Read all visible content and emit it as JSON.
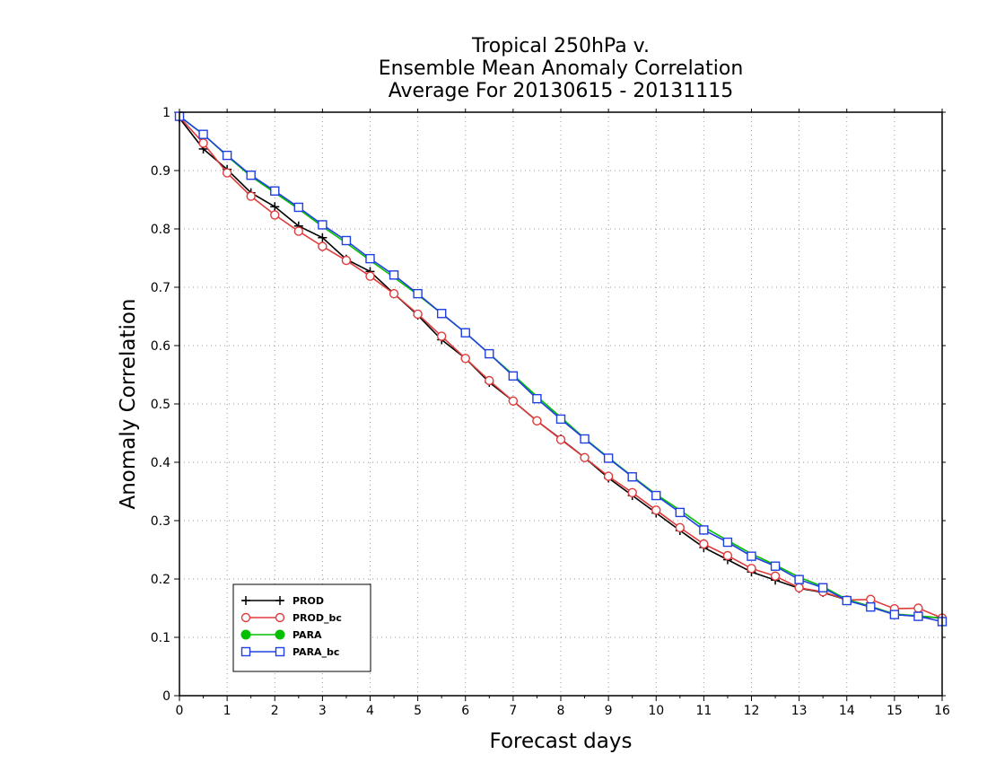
{
  "chart_data": {
    "type": "line",
    "title": [
      "Tropical 250hPa v.",
      "Ensemble Mean Anomaly Correlation",
      "Average For 20130615 - 20131115"
    ],
    "xlabel": "Forecast days",
    "ylabel": "Anomaly Correlation",
    "xlim": [
      0,
      16
    ],
    "ylim": [
      0,
      1
    ],
    "xticks": [
      0,
      1,
      2,
      3,
      4,
      5,
      6,
      7,
      8,
      9,
      10,
      11,
      12,
      13,
      14,
      15,
      16
    ],
    "yticks": [
      0,
      0.1,
      0.2,
      0.3,
      0.4,
      0.5,
      0.6,
      0.7,
      0.8,
      0.9,
      1
    ],
    "ytick_labels": [
      "0",
      "0.1",
      "0.2",
      "0.3",
      "0.4",
      "0.5",
      "0.6",
      "0.7",
      "0.8",
      "0.9",
      "1"
    ],
    "grid": true,
    "legend_position": "bottom-left",
    "x": [
      0,
      0.5,
      1,
      1.5,
      2,
      2.5,
      3,
      3.5,
      4,
      4.5,
      5,
      5.5,
      6,
      6.5,
      7,
      7.5,
      8,
      8.5,
      9,
      9.5,
      10,
      10.5,
      11,
      11.5,
      12,
      12.5,
      13,
      13.5,
      14,
      14.5,
      15,
      15.5,
      16
    ],
    "series": [
      {
        "name": "PROD",
        "color": "#000000",
        "marker": "plus",
        "values": [
          0.99,
          0.937,
          0.902,
          0.862,
          0.838,
          0.805,
          0.785,
          0.748,
          0.727,
          0.689,
          0.652,
          0.61,
          0.578,
          0.537,
          0.505,
          0.471,
          0.44,
          0.408,
          0.373,
          0.343,
          0.313,
          0.283,
          0.254,
          0.233,
          0.212,
          0.198,
          0.184,
          0.177,
          0.164,
          0.152,
          0.139,
          0.136,
          0.133
        ]
      },
      {
        "name": "PROD_bc",
        "color": "#e03c3c",
        "marker": "circle",
        "values": [
          0.992,
          0.947,
          0.896,
          0.856,
          0.824,
          0.796,
          0.77,
          0.746,
          0.719,
          0.689,
          0.654,
          0.616,
          0.578,
          0.54,
          0.505,
          0.471,
          0.439,
          0.408,
          0.376,
          0.348,
          0.318,
          0.288,
          0.26,
          0.24,
          0.218,
          0.205,
          0.185,
          0.178,
          0.164,
          0.165,
          0.149,
          0.15,
          0.133
        ]
      },
      {
        "name": "PARA",
        "color": "#00c000",
        "marker": "filled-circle",
        "values": [
          0.993,
          0.962,
          0.925,
          0.89,
          0.862,
          0.834,
          0.804,
          0.776,
          0.746,
          0.717,
          0.687,
          0.655,
          0.622,
          0.586,
          0.55,
          0.513,
          0.477,
          0.441,
          0.408,
          0.376,
          0.345,
          0.318,
          0.289,
          0.266,
          0.243,
          0.224,
          0.203,
          0.187,
          0.165,
          0.153,
          0.14,
          0.137,
          0.133
        ]
      },
      {
        "name": "PARA_bc",
        "color": "#2040e0",
        "marker": "square",
        "values": [
          0.993,
          0.962,
          0.926,
          0.892,
          0.865,
          0.837,
          0.807,
          0.78,
          0.749,
          0.721,
          0.689,
          0.655,
          0.622,
          0.586,
          0.548,
          0.509,
          0.474,
          0.44,
          0.407,
          0.375,
          0.343,
          0.314,
          0.284,
          0.263,
          0.239,
          0.222,
          0.199,
          0.185,
          0.163,
          0.152,
          0.139,
          0.136,
          0.127
        ]
      }
    ]
  }
}
